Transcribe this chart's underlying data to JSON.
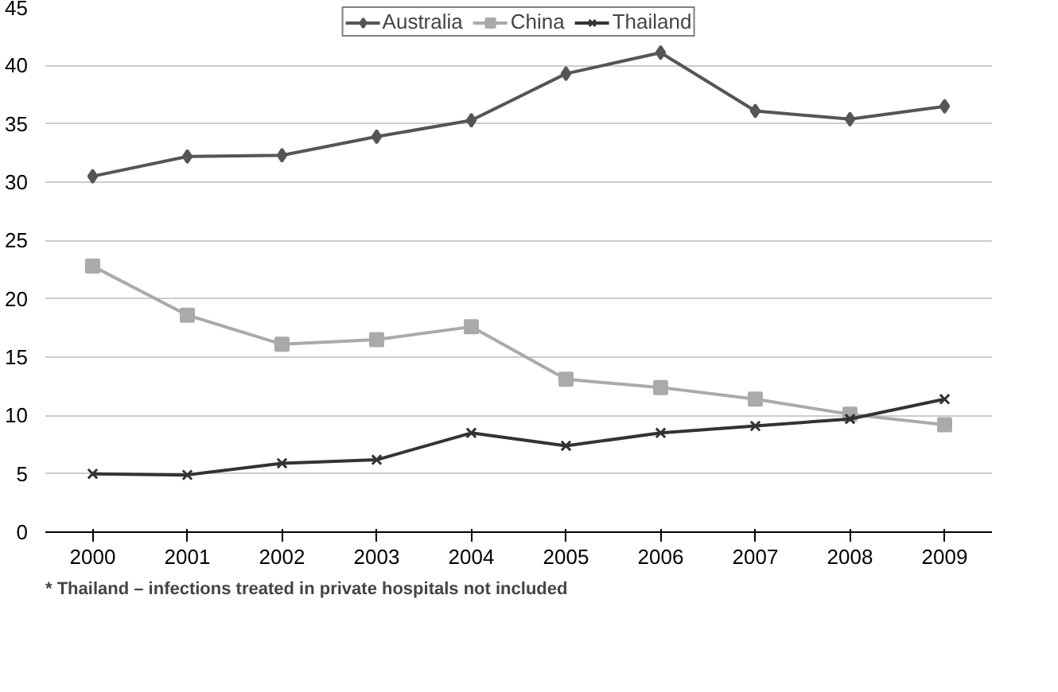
{
  "chart_data": {
    "type": "line",
    "categories": [
      "2000",
      "2001",
      "2002",
      "2003",
      "2004",
      "2005",
      "2006",
      "2007",
      "2008",
      "2009"
    ],
    "series": [
      {
        "name": "Australia",
        "color": "#555555",
        "marker": "diamond",
        "values": [
          30.5,
          32.2,
          32.3,
          33.9,
          35.3,
          39.3,
          41.1,
          36.1,
          35.4,
          36.5
        ]
      },
      {
        "name": "China",
        "color": "#aaaaaa",
        "marker": "square",
        "values": [
          22.8,
          18.6,
          16.1,
          16.5,
          17.6,
          13.1,
          12.4,
          11.4,
          10.1,
          9.2
        ]
      },
      {
        "name": "Thailand",
        "color": "#333333",
        "marker": "cross",
        "values": [
          5.0,
          4.9,
          5.9,
          6.2,
          8.5,
          7.4,
          8.5,
          9.1,
          9.7,
          11.4
        ]
      }
    ],
    "ylim": [
      0,
      45
    ],
    "yticks": [
      0,
      5,
      10,
      15,
      20,
      25,
      30,
      35,
      40,
      45
    ],
    "grid": "y",
    "legend": "top",
    "line_style": "solid",
    "annotations": [
      "* Thailand – infections treated in private hospitals not included"
    ]
  }
}
